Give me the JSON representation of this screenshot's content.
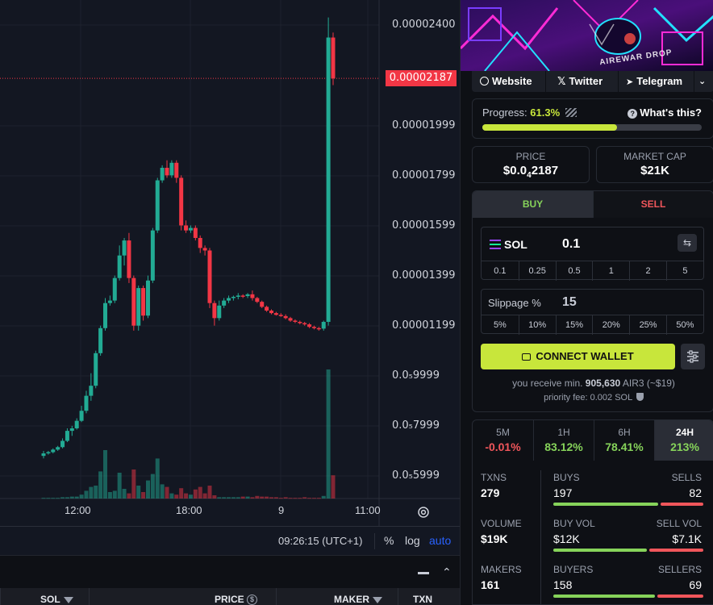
{
  "chart": {
    "price_ticks": [
      "0.00002400",
      "0.00001999",
      "0.00001799",
      "0.00001599",
      "0.00001399",
      "0.00001199",
      "0.0₅9999",
      "0.0₅7999",
      "0.0₅5999"
    ],
    "current_price": "0.00002187",
    "time_ticks": [
      "12:00",
      "18:00",
      "9",
      "11:00"
    ],
    "clock": "09:26:15 (UTC+1)",
    "percent_label": "%",
    "log_label": "log",
    "auto_label": "auto",
    "colors": {
      "up": "#22ab94",
      "down": "#f23645",
      "background": "#131722"
    }
  },
  "chart_data": {
    "type": "candlestick",
    "ylabel": "",
    "xlabel": "",
    "y_ticks": [
      2.4e-05,
      1.999e-05,
      1.799e-05,
      1.599e-05,
      1.399e-05,
      1.199e-05,
      9.999e-06,
      7.999e-06,
      5.999e-06
    ],
    "x_ticks": [
      "12:00",
      "18:00",
      "9",
      "11:00"
    ],
    "last_price": 2.187e-05,
    "candles": [
      [
        6.8e-06,
        7e-06,
        6.7e-06,
        6.9e-06
      ],
      [
        6.9e-06,
        7e-06,
        6.85e-06,
        6.95e-06
      ],
      [
        6.95e-06,
        7.1e-06,
        6.9e-06,
        7.05e-06
      ],
      [
        7.05e-06,
        7.2e-06,
        7e-06,
        7.15e-06
      ],
      [
        7.15e-06,
        7.5e-06,
        7.1e-06,
        7.4e-06
      ],
      [
        7.4e-06,
        7.9e-06,
        7.35e-06,
        7.8e-06
      ],
      [
        7.8e-06,
        8e-06,
        7.6e-06,
        7.9e-06
      ],
      [
        7.9e-06,
        8.3e-06,
        7.85e-06,
        8.2e-06
      ],
      [
        8.2e-06,
        8.8e-06,
        8.15e-06,
        8.6e-06
      ],
      [
        8.6e-06,
        9.4e-06,
        8.5e-06,
        9.2e-06
      ],
      [
        9.2e-06,
        1.01e-05,
        9e-06,
        9.6e-06
      ],
      [
        9.6e-06,
        1.1e-05,
        9.5e-06,
        1.09e-05
      ],
      [
        1.09e-05,
        1.2e-05,
        1.08e-05,
        1.19e-05
      ],
      [
        1.19e-05,
        1.31e-05,
        1.18e-05,
        1.29e-05
      ],
      [
        1.29e-05,
        1.32e-05,
        1.28e-05,
        1.3e-05
      ],
      [
        1.3e-05,
        1.4e-05,
        1.29e-05,
        1.39e-05
      ],
      [
        1.39e-05,
        1.52e-05,
        1.38e-05,
        1.48e-05
      ],
      [
        1.48e-05,
        1.55e-05,
        1.44e-05,
        1.54e-05
      ],
      [
        1.54e-05,
        1.57e-05,
        1.37e-05,
        1.39e-05
      ],
      [
        1.39e-05,
        1.4e-05,
        1.18e-05,
        1.2e-05
      ],
      [
        1.2e-05,
        1.36e-05,
        1.18e-05,
        1.35e-05
      ],
      [
        1.35e-05,
        1.36e-05,
        1.22e-05,
        1.24e-05
      ],
      [
        1.24e-05,
        1.4e-05,
        1.23e-05,
        1.38e-05
      ],
      [
        1.38e-05,
        1.59e-05,
        1.37e-05,
        1.58e-05
      ],
      [
        1.58e-05,
        1.79e-05,
        1.57e-05,
        1.78e-05
      ],
      [
        1.78e-05,
        1.84e-05,
        1.77e-05,
        1.83e-05
      ],
      [
        1.83e-05,
        1.86e-05,
        1.79e-05,
        1.8e-05
      ],
      [
        1.8e-05,
        1.86e-05,
        1.79e-05,
        1.85e-05
      ],
      [
        1.85e-05,
        1.86e-05,
        1.77e-05,
        1.79e-05
      ],
      [
        1.79e-05,
        1.8e-05,
        1.58e-05,
        1.6e-05
      ],
      [
        1.6e-05,
        1.62e-05,
        1.57e-05,
        1.58e-05
      ],
      [
        1.58e-05,
        1.6e-05,
        1.57e-05,
        1.59e-05
      ],
      [
        1.59e-05,
        1.6e-05,
        1.54e-05,
        1.55e-05
      ],
      [
        1.55e-05,
        1.56e-05,
        1.49e-05,
        1.51e-05
      ],
      [
        1.51e-05,
        1.52e-05,
        1.48e-05,
        1.5e-05
      ],
      [
        1.5e-05,
        1.51e-05,
        1.27e-05,
        1.29e-05
      ],
      [
        1.29e-05,
        1.3e-05,
        1.2e-05,
        1.23e-05
      ],
      [
        1.23e-05,
        1.3e-05,
        1.22e-05,
        1.28e-05
      ],
      [
        1.28e-05,
        1.31e-05,
        1.27e-05,
        1.3e-05
      ],
      [
        1.3e-05,
        1.32e-05,
        1.29e-05,
        1.31e-05
      ],
      [
        1.31e-05,
        1.32e-05,
        1.3e-05,
        1.315e-05
      ],
      [
        1.315e-05,
        1.33e-05,
        1.305e-05,
        1.32e-05
      ],
      [
        1.32e-05,
        1.325e-05,
        1.31e-05,
        1.318e-05
      ],
      [
        1.318e-05,
        1.33e-05,
        1.31e-05,
        1.325e-05
      ],
      [
        1.325e-05,
        1.34e-05,
        1.3e-05,
        1.31e-05
      ],
      [
        1.31e-05,
        1.315e-05,
        1.29e-05,
        1.295e-05
      ],
      [
        1.295e-05,
        1.3e-05,
        1.27e-05,
        1.275e-05
      ],
      [
        1.275e-05,
        1.28e-05,
        1.255e-05,
        1.26e-05
      ],
      [
        1.26e-05,
        1.265e-05,
        1.245e-05,
        1.25e-05
      ],
      [
        1.25e-05,
        1.255e-05,
        1.24e-05,
        1.243e-05
      ],
      [
        1.243e-05,
        1.25e-05,
        1.235e-05,
        1.238e-05
      ],
      [
        1.238e-05,
        1.245e-05,
        1.225e-05,
        1.23e-05
      ],
      [
        1.23e-05,
        1.235e-05,
        1.215e-05,
        1.22e-05
      ],
      [
        1.22e-05,
        1.225e-05,
        1.21e-05,
        1.215e-05
      ],
      [
        1.215e-05,
        1.22e-05,
        1.205e-05,
        1.21e-05
      ],
      [
        1.21e-05,
        1.215e-05,
        1.2e-05,
        1.205e-05
      ],
      [
        1.205e-05,
        1.21e-05,
        1.19e-05,
        1.195e-05
      ],
      [
        1.195e-05,
        1.2e-05,
        1.185e-05,
        1.19e-05
      ],
      [
        1.19e-05,
        1.195e-05,
        1.18e-05,
        1.188e-05
      ],
      [
        1.188e-05,
        1.22e-05,
        1.18e-05,
        1.215e-05
      ],
      [
        1.215e-05,
        2.43e-05,
        1.2e-05,
        2.35e-05
      ],
      [
        2.35e-05,
        2.37e-05,
        2.16e-05,
        2.187e-05
      ]
    ],
    "volumes": [
      0.01,
      0.01,
      0.01,
      0.01,
      0.02,
      0.02,
      0.03,
      0.03,
      0.06,
      0.12,
      0.18,
      0.2,
      0.42,
      0.75,
      0.1,
      0.12,
      0.4,
      0.15,
      0.08,
      0.45,
      0.2,
      0.1,
      0.28,
      0.38,
      0.62,
      0.22,
      0.18,
      0.08,
      0.06,
      0.16,
      0.08,
      0.06,
      0.14,
      0.18,
      0.08,
      0.2,
      0.05,
      0.02,
      0.02,
      0.02,
      0.02,
      0.02,
      0.03,
      0.03,
      0.02,
      0.04,
      0.03,
      0.03,
      0.02,
      0.02,
      0.01,
      0.02,
      0.01,
      0.01,
      0.01,
      0.02,
      0.01,
      0.01,
      0.01,
      0.04,
      2.0,
      0.36
    ]
  },
  "banner": {
    "watermark": "AIREWAR DROP"
  },
  "links": [
    {
      "label": "Website",
      "icon": "globe-icon"
    },
    {
      "label": "Twitter",
      "icon": "x-logo-icon"
    },
    {
      "label": "Telegram",
      "icon": "telegram-icon"
    }
  ],
  "progress": {
    "label": "Progress:",
    "value": "61.3%",
    "fraction": 0.613,
    "help": "What's this?"
  },
  "price_card": {
    "label": "PRICE",
    "prefix": "$0.0",
    "zeros": "4",
    "digits": "2187"
  },
  "mcap_card": {
    "label": "MARKET CAP",
    "value": "$21K"
  },
  "trade": {
    "buy_label": "BUY",
    "sell_label": "SELL",
    "token": "SOL",
    "amount": "0.1",
    "amount_presets": [
      "0.1",
      "0.25",
      "0.5",
      "1",
      "2",
      "5"
    ],
    "slippage_label": "Slippage %",
    "slippage_value": "15",
    "slippage_presets": [
      "5%",
      "10%",
      "15%",
      "20%",
      "25%",
      "50%"
    ],
    "connect_label": "CONNECT WALLET",
    "receive_prefix": "you receive min.",
    "receive_amount": "905,630",
    "receive_token": "AIR3",
    "receive_usd": "(~$19)",
    "priority_fee": "priority fee: 0.002 SOL"
  },
  "periods": [
    {
      "label": "5M",
      "value": "-0.01%",
      "color": "#f0565b"
    },
    {
      "label": "1H",
      "value": "83.12%",
      "color": "#86d35a"
    },
    {
      "label": "6H",
      "value": "78.41%",
      "color": "#86d35a"
    },
    {
      "label": "24H",
      "value": "213%",
      "color": "#86d35a"
    }
  ],
  "stats": {
    "txns_label": "TXNS",
    "txns": "279",
    "buys_label": "BUYS",
    "buys": "197",
    "sells_label": "SELLS",
    "sells": "82",
    "volume_label": "VOLUME",
    "volume": "$19K",
    "buy_vol_label": "BUY VOL",
    "buy_vol": "$12K",
    "sell_vol_label": "SELL VOL",
    "sell_vol": "$7.1K",
    "makers_label": "MAKERS",
    "makers": "161",
    "buyers_label": "BUYERS",
    "buyers": "158",
    "sellers_label": "SELLERS",
    "sellers": "69"
  },
  "table": {
    "col_sol": "SOL",
    "col_price": "PRICE",
    "col_maker": "MAKER",
    "col_txn": "TXN"
  }
}
